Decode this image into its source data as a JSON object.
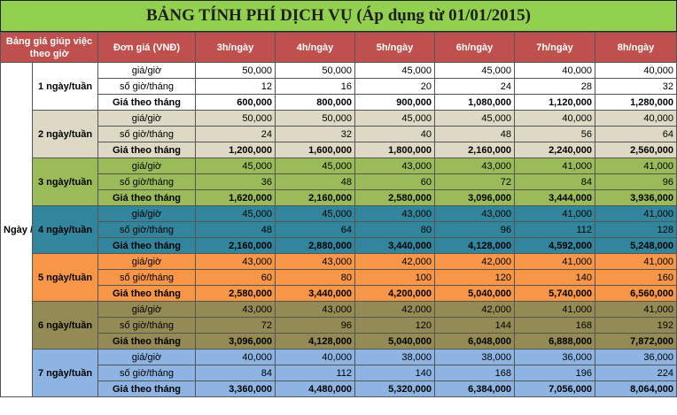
{
  "title": "BẢNG TÍNH PHÍ DỊCH VỤ (Áp dụng từ 01/01/2015)",
  "header": {
    "corner": "Bảng giá giúp việc theo giờ",
    "unit_label": "Đơn giá (VNĐ)",
    "columns": [
      "3h/ngày",
      "4h/ngày",
      "5h/ngày",
      "6h/ngày",
      "7h/ngày",
      "8h/ngày"
    ]
  },
  "side_label": "Ngày /tuần",
  "row_labels": {
    "price": "giá/giờ",
    "hours": "số giờ/tháng",
    "total": "Giá theo tháng"
  },
  "colors": {
    "title_bg": "#92d050",
    "header_bg": "#c0504d",
    "groups": [
      "#ffffff",
      "#ddd9c4",
      "#9bbb59",
      "#31859c",
      "#f79646",
      "#948a54",
      "#8db4e2"
    ]
  },
  "groups": [
    {
      "label": "1 ngày/tuần",
      "price": [
        "50,000",
        "50,000",
        "45,000",
        "45,000",
        "40,000",
        "40,000"
      ],
      "hours": [
        "12",
        "16",
        "20",
        "24",
        "28",
        "32"
      ],
      "total": [
        "600,000",
        "800,000",
        "900,000",
        "1,080,000",
        "1,120,000",
        "1,280,000"
      ]
    },
    {
      "label": "2 ngày/tuần",
      "price": [
        "50,000",
        "50,000",
        "45,000",
        "45,000",
        "40,000",
        "40,000"
      ],
      "hours": [
        "24",
        "32",
        "40",
        "48",
        "56",
        "64"
      ],
      "total": [
        "1,200,000",
        "1,600,000",
        "1,800,000",
        "2,160,000",
        "2,240,000",
        "2,560,000"
      ]
    },
    {
      "label": "3 ngày/tuần",
      "price": [
        "45,000",
        "45,000",
        "43,000",
        "43,000",
        "41,000",
        "41,000"
      ],
      "hours": [
        "36",
        "48",
        "60",
        "72",
        "84",
        "96"
      ],
      "total": [
        "1,620,000",
        "2,160,000",
        "2,580,000",
        "3,096,000",
        "3,444,000",
        "3,936,000"
      ]
    },
    {
      "label": "4 ngày/tuần",
      "price": [
        "45,000",
        "45,000",
        "43,000",
        "43,000",
        "41,000",
        "41,000"
      ],
      "hours": [
        "48",
        "64",
        "80",
        "96",
        "112",
        "128"
      ],
      "total": [
        "2,160,000",
        "2,880,000",
        "3,440,000",
        "4,128,000",
        "4,592,000",
        "5,248,000"
      ]
    },
    {
      "label": "5 ngày/tuần",
      "price": [
        "43,000",
        "43,000",
        "42,000",
        "42,000",
        "41,000",
        "41,000"
      ],
      "hours": [
        "60",
        "80",
        "100",
        "120",
        "140",
        "160"
      ],
      "total": [
        "2,580,000",
        "3,440,000",
        "4,200,000",
        "5,040,000",
        "5,740,000",
        "6,560,000"
      ]
    },
    {
      "label": "6 ngày/tuần",
      "price": [
        "43,000",
        "43,000",
        "42,000",
        "42,000",
        "41,000",
        "41,000"
      ],
      "hours": [
        "72",
        "96",
        "120",
        "144",
        "168",
        "192"
      ],
      "total": [
        "3,096,000",
        "4,128,000",
        "5,040,000",
        "6,048,000",
        "6,888,000",
        "7,872,000"
      ]
    },
    {
      "label": "7 ngày/tuần",
      "price": [
        "40,000",
        "40,000",
        "38,000",
        "38,000",
        "36,000",
        "36,000"
      ],
      "hours": [
        "84",
        "112",
        "140",
        "168",
        "196",
        "224"
      ],
      "total": [
        "3,360,000",
        "4,480,000",
        "5,320,000",
        "6,384,000",
        "7,056,000",
        "8,064,000"
      ]
    }
  ]
}
